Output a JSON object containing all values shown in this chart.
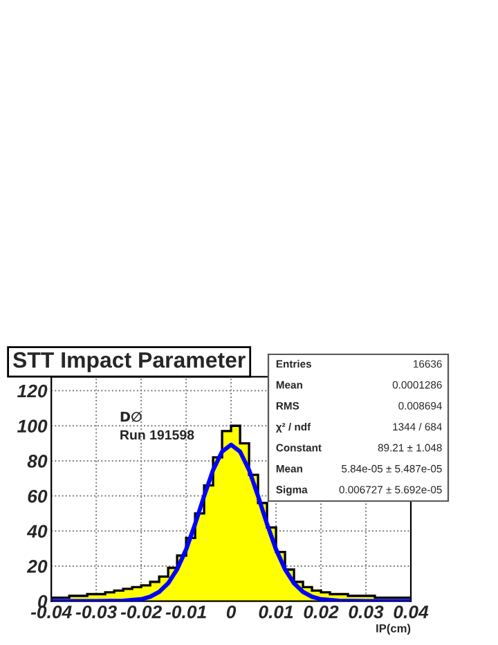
{
  "chart_data": {
    "type": "histogram",
    "title": "STT Impact Parameter",
    "xlabel": "IP(cm)",
    "bins": [
      -0.04,
      -0.038,
      -0.036,
      -0.034,
      -0.032,
      -0.03,
      -0.028,
      -0.026,
      -0.024,
      -0.022,
      -0.02,
      -0.018,
      -0.016,
      -0.014,
      -0.012,
      -0.01,
      -0.008,
      -0.006,
      -0.004,
      -0.002,
      0,
      0.002,
      0.004,
      0.006,
      0.008,
      0.01,
      0.012,
      0.014,
      0.016,
      0.018,
      0.02,
      0.022,
      0.024,
      0.026,
      0.028,
      0.03,
      0.032,
      0.034,
      0.036,
      0.038,
      0.04
    ],
    "values": [
      2,
      2,
      3,
      3,
      4,
      4,
      5,
      6,
      7,
      8,
      9,
      11,
      14,
      19,
      26,
      36,
      50,
      66,
      82,
      97,
      100,
      90,
      72,
      56,
      42,
      28,
      18,
      11,
      8,
      6,
      5,
      4,
      4,
      3,
      3,
      3,
      2,
      2,
      2,
      2
    ],
    "color": "#ffff00",
    "series": [
      {
        "type": "line",
        "color": "#0000ff",
        "x": [
          -0.04,
          -0.03,
          -0.024,
          -0.02,
          -0.018,
          -0.016,
          -0.014,
          -0.012,
          -0.01,
          -0.008,
          -0.006,
          -0.004,
          -0.002,
          0,
          0.002,
          0.004,
          0.006,
          0.008,
          0.01,
          0.012,
          0.014,
          0.016,
          0.018,
          0.02,
          0.024,
          0.03,
          0.04
        ],
        "values": [
          0,
          0,
          0.2,
          1.1,
          2.5,
          5.3,
          10.2,
          18.2,
          29.5,
          44.0,
          59.9,
          74.8,
          85.3,
          89.2,
          85.3,
          74.8,
          59.9,
          44.0,
          29.5,
          18.2,
          10.2,
          5.3,
          2.5,
          1.1,
          0.2,
          0,
          0
        ]
      }
    ],
    "xlim": [
      -0.04,
      0.04
    ],
    "xticks": [
      {
        "value": -0.04,
        "label": "-0.04"
      },
      {
        "value": -0.03,
        "label": "-0.03"
      },
      {
        "value": -0.02,
        "label": "-0.02"
      },
      {
        "value": -0.01,
        "label": "-0.01"
      },
      {
        "value": 0,
        "label": "0"
      },
      {
        "value": 0.01,
        "label": "0.01"
      },
      {
        "value": 0.02,
        "label": "0.02"
      },
      {
        "value": 0.03,
        "label": "0.03"
      },
      {
        "value": 0.04,
        "label": "0.04"
      }
    ],
    "ylim": [
      0,
      128
    ],
    "yticks": [
      0,
      20,
      40,
      60,
      80,
      100,
      120
    ],
    "grid": true,
    "annotations": [
      "D∅",
      "Run 191598",
      "Entries",
      "16636",
      "Mean",
      "0.0001286",
      "RMS",
      "0.008694",
      "χ² / ndf",
      "1344 / 684",
      "Constant",
      "89.21 ± 1.048",
      "Mean",
      "5.84e-05 ± 5.487e-05",
      "Sigma",
      "0.006727 ± 5.692e-05"
    ]
  }
}
